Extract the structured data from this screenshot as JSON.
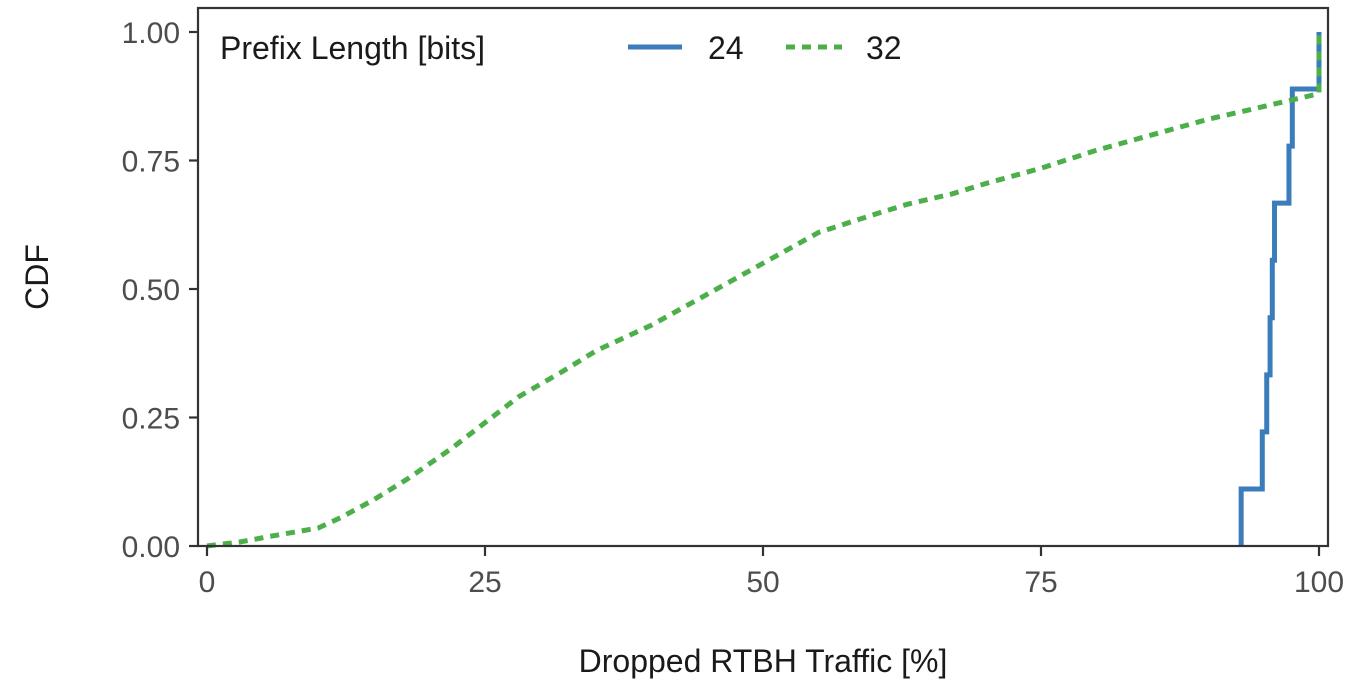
{
  "chart_data": {
    "type": "line",
    "xlabel": "Dropped RTBH Traffic [%]",
    "ylabel": "CDF",
    "xlim": [
      0,
      100
    ],
    "ylim": [
      0,
      1
    ],
    "x_ticks": [
      0,
      25,
      50,
      75,
      100
    ],
    "x_tick_labels": [
      "0",
      "25",
      "50",
      "75",
      "100"
    ],
    "y_ticks": [
      0,
      0.25,
      0.5,
      0.75,
      1
    ],
    "y_tick_labels": [
      "0.00",
      "0.25",
      "0.50",
      "0.75",
      "1.00"
    ],
    "grid": false,
    "legend": {
      "title": "Prefix Length [bits]",
      "placement": "top-left",
      "entries": [
        "24",
        "32"
      ]
    },
    "series": [
      {
        "name": "24",
        "color": "#3b7dbb",
        "style": "solid-step",
        "x": [
          93.0,
          94.9,
          95.3,
          95.6,
          95.8,
          96.0,
          97.3,
          97.6,
          100.0
        ],
        "y": [
          0.111,
          0.222,
          0.333,
          0.444,
          0.556,
          0.667,
          0.778,
          0.889,
          1.0
        ]
      },
      {
        "name": "32",
        "color": "#4daf4a",
        "style": "dashed",
        "x": [
          0,
          3,
          6,
          10,
          12,
          15,
          18,
          22,
          25,
          28,
          32,
          35,
          40,
          45,
          50,
          55,
          60,
          63,
          67,
          70,
          75,
          80,
          85,
          90,
          95,
          100,
          100
        ],
        "y": [
          0.0,
          0.008,
          0.02,
          0.035,
          0.055,
          0.09,
          0.13,
          0.19,
          0.24,
          0.29,
          0.34,
          0.38,
          0.43,
          0.49,
          0.55,
          0.61,
          0.645,
          0.665,
          0.685,
          0.705,
          0.735,
          0.77,
          0.8,
          0.83,
          0.855,
          0.88,
          1.0
        ]
      }
    ]
  }
}
